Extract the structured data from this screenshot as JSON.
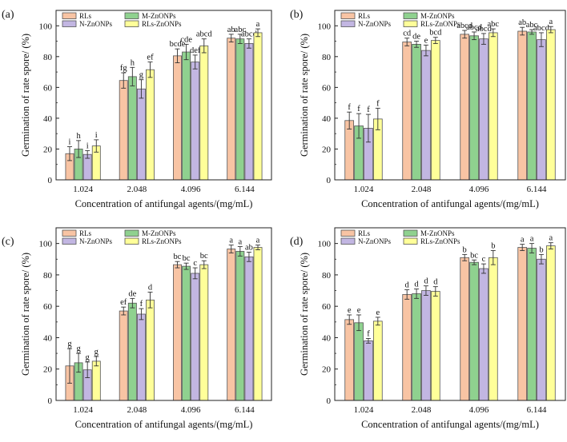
{
  "figure": {
    "panel_labels": [
      "(a)",
      "(b)",
      "(c)",
      "(d)"
    ],
    "shared_xlabel": "Concentration of antifungal agents/(mg/mL)",
    "shared_ylabel": "Germination of rate spore/ (%)"
  },
  "chart_data": [
    {
      "type": "bar",
      "panel": "(a)",
      "xlabel": "Concentration of antifungal agents/(mg/mL)",
      "ylabel": "Germination of rate spore/ (%)",
      "categories": [
        "1.024",
        "2.048",
        "4.096",
        "6.144"
      ],
      "ylim": [
        0,
        110
      ],
      "yticks": [
        0,
        20,
        40,
        60,
        80,
        100
      ],
      "legend_position": "top-left",
      "series": [
        {
          "name": "RLs",
          "color": "#f8c4a4",
          "values": [
            17,
            64.5,
            80.5,
            92
          ],
          "errors": [
            4.5,
            5,
            4.5,
            2.5
          ],
          "letters": [
            "i",
            "fg",
            "bcde",
            "ab"
          ]
        },
        {
          "name": "M-ZnONPs",
          "color": "#8fd18f",
          "values": [
            20,
            67,
            83,
            91.5
          ],
          "errors": [
            5.5,
            6,
            5,
            3
          ],
          "letters": [
            "h",
            "h",
            "cde",
            "abc"
          ]
        },
        {
          "name": "N-ZnONPs",
          "color": "#c2b6e2",
          "values": [
            16.5,
            59,
            76.5,
            88.5
          ],
          "errors": [
            2.5,
            6,
            4.5,
            3
          ],
          "letters": [
            "i",
            "g",
            "def",
            "abcd"
          ]
        },
        {
          "name": "RLs-ZnONPs",
          "color": "#ffff99",
          "values": [
            22,
            71.5,
            87,
            95.5
          ],
          "errors": [
            4,
            5,
            4.5,
            2.5
          ],
          "letters": [
            "i",
            "ef",
            "abcd",
            "a"
          ]
        }
      ]
    },
    {
      "type": "bar",
      "panel": "(b)",
      "xlabel": "Concentration of antifungal agents/(mg/mL)",
      "ylabel": "Germination of rate spore/ (%)",
      "categories": [
        "1.024",
        "2.048",
        "4.096",
        "6.144"
      ],
      "ylim": [
        0,
        110
      ],
      "yticks": [
        0,
        20,
        40,
        60,
        80,
        100
      ],
      "legend_position": "top-left",
      "series": [
        {
          "name": "RLs",
          "color": "#f8c4a4",
          "values": [
            38.5,
            89.5,
            94.5,
            96.5
          ],
          "errors": [
            5.5,
            2.5,
            2.5,
            2.5
          ],
          "letters": [
            "f",
            "cd",
            "abcd",
            "ab"
          ]
        },
        {
          "name": "M-ZnONPs",
          "color": "#8fd18f",
          "values": [
            35,
            88,
            93.5,
            96
          ],
          "errors": [
            8,
            2,
            2.5,
            1.5
          ],
          "letters": [
            "f",
            "de",
            "abcd",
            "abc"
          ]
        },
        {
          "name": "N-ZnONPs",
          "color": "#c2b6e2",
          "values": [
            33.5,
            84,
            91.5,
            91
          ],
          "errors": [
            9,
            3.5,
            3.5,
            4.5
          ],
          "letters": [
            "f",
            "e",
            "abcd",
            "abcd"
          ]
        },
        {
          "name": "RLs-ZnONPs",
          "color": "#ffff99",
          "values": [
            39.5,
            90.5,
            95.5,
            97.5
          ],
          "errors": [
            7,
            2,
            2.5,
            2
          ],
          "letters": [
            "f",
            "bcd",
            "abc",
            "a"
          ]
        }
      ]
    },
    {
      "type": "bar",
      "panel": "(c)",
      "xlabel": "Concentration of antifungal agents/(mg/mL)",
      "ylabel": "Germination of rate spore/ (%)",
      "categories": [
        "1.024",
        "2.048",
        "4.096",
        "6.144"
      ],
      "ylim": [
        0,
        110
      ],
      "yticks": [
        0,
        20,
        40,
        60,
        80,
        100
      ],
      "legend_position": "top-left",
      "series": [
        {
          "name": "RLs",
          "color": "#f8c4a4",
          "values": [
            22,
            57,
            86.5,
            96.5
          ],
          "errors": [
            11,
            2.5,
            2,
            2.5
          ],
          "letters": [
            "g",
            "ef",
            "bc",
            "a"
          ]
        },
        {
          "name": "M-ZnONPs",
          "color": "#8fd18f",
          "values": [
            24,
            62,
            85.5,
            95
          ],
          "errors": [
            6,
            3,
            2,
            3
          ],
          "letters": [
            "g",
            "de",
            "bc",
            "a"
          ]
        },
        {
          "name": "N-ZnONPs",
          "color": "#c2b6e2",
          "values": [
            19.5,
            55,
            81,
            91.5
          ],
          "errors": [
            5,
            3.5,
            3.5,
            3
          ],
          "letters": [
            "g",
            "f",
            "c",
            "ab"
          ]
        },
        {
          "name": "RLs-ZnONPs",
          "color": "#ffff99",
          "values": [
            25,
            64,
            86.5,
            97.5
          ],
          "errors": [
            3,
            5,
            2.5,
            1.5
          ],
          "letters": [
            "g",
            "d",
            "bc",
            "a"
          ]
        }
      ]
    },
    {
      "type": "bar",
      "panel": "(d)",
      "xlabel": "Concentration of antifungal agents/(mg/mL)",
      "ylabel": "Germination of rate spore/ (%)",
      "categories": [
        "1.024",
        "2.048",
        "4.096",
        "6.144"
      ],
      "ylim": [
        0,
        110
      ],
      "yticks": [
        0,
        20,
        40,
        60,
        80,
        100
      ],
      "legend_position": "top-left",
      "series": [
        {
          "name": "RLs",
          "color": "#f8c4a4",
          "values": [
            51.5,
            67.5,
            91,
            97.5
          ],
          "errors": [
            3,
            3,
            2,
            2
          ],
          "letters": [
            "e",
            "d",
            "b",
            "a"
          ]
        },
        {
          "name": "M-ZnONPs",
          "color": "#8fd18f",
          "values": [
            49.5,
            68,
            88,
            97
          ],
          "errors": [
            5,
            3,
            1.5,
            3
          ],
          "letters": [
            "e",
            "d",
            "bc",
            "a"
          ]
        },
        {
          "name": "N-ZnONPs",
          "color": "#c2b6e2",
          "values": [
            38,
            70,
            84,
            90
          ],
          "errors": [
            1.5,
            3,
            3,
            3
          ],
          "letters": [
            "f",
            "d",
            "c",
            "b"
          ]
        },
        {
          "name": "RLs-ZnONPs",
          "color": "#ffff99",
          "values": [
            50.5,
            69.5,
            91,
            98.5
          ],
          "errors": [
            2.5,
            3,
            4.5,
            2
          ],
          "letters": [
            "e",
            "d",
            "b",
            "a"
          ]
        }
      ]
    }
  ]
}
